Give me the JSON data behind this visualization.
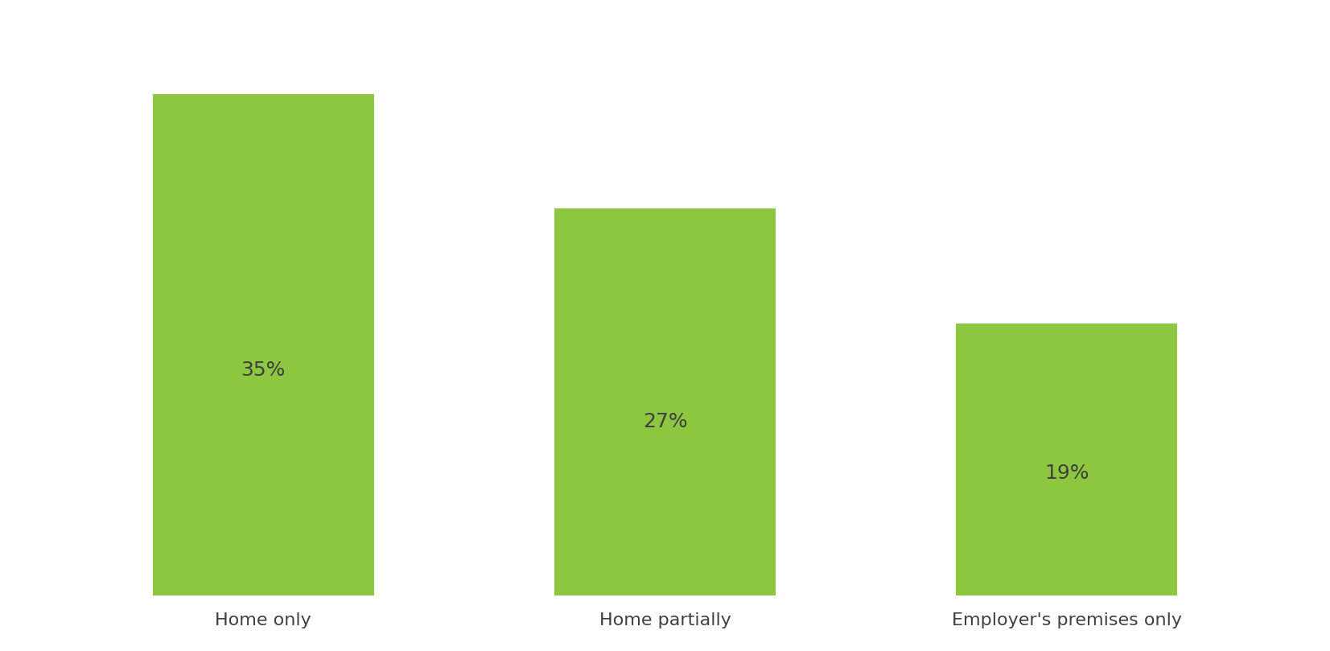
{
  "categories": [
    "Home only",
    "Home partially",
    "Employer's premises only"
  ],
  "values": [
    35,
    27,
    19
  ],
  "labels": [
    "35%",
    "27%",
    "19%"
  ],
  "bar_color": "#8DC63F",
  "label_color": "#404040",
  "background_color": "#ffffff",
  "grid_color": "#d0d0d0",
  "ylim": [
    0,
    40
  ],
  "bar_width": 0.55,
  "label_fontsize": 18,
  "tick_fontsize": 16,
  "grid_interval": 5
}
